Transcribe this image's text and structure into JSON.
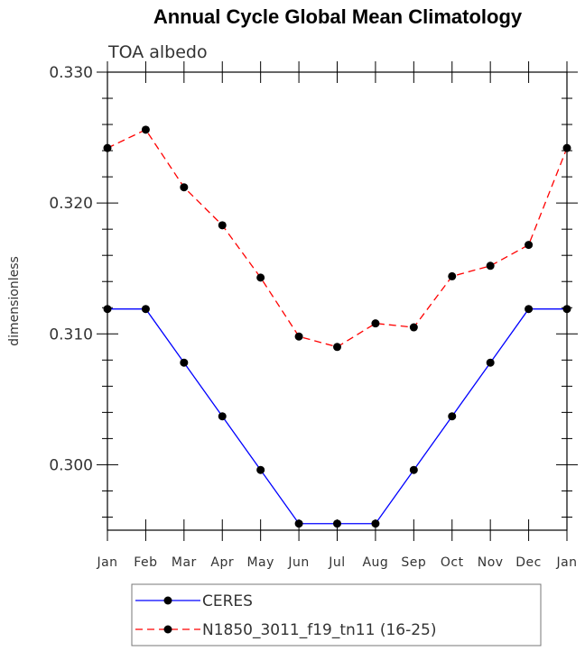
{
  "chart_data": {
    "type": "line",
    "title": "Annual Cycle Global Mean Climatology",
    "subtitle": "TOA albedo",
    "xlabel": "",
    "ylabel": "dimensionless",
    "categories": [
      "Jan",
      "Feb",
      "Mar",
      "Apr",
      "May",
      "Jun",
      "Jul",
      "Aug",
      "Sep",
      "Oct",
      "Nov",
      "Dec",
      "Jan"
    ],
    "ylim": [
      0.295,
      0.33
    ],
    "yticks": [
      "0.300",
      "0.310",
      "0.320",
      "0.330"
    ],
    "legend_position": "bottom",
    "series": [
      {
        "name": "CERES",
        "color": "#0000ff",
        "dash": "solid",
        "values": [
          0.3119,
          0.3119,
          0.3078,
          0.3037,
          0.2996,
          0.2955,
          0.2955,
          0.2955,
          0.2996,
          0.3037,
          0.3078,
          0.3119,
          0.3119
        ]
      },
      {
        "name": "N1850_3011_f19_tn11 (16-25)",
        "color": "#ff0000",
        "dash": "dashed",
        "values": [
          0.3242,
          0.3256,
          0.3212,
          0.3183,
          0.3143,
          0.3098,
          0.309,
          0.3108,
          0.3105,
          0.3144,
          0.3152,
          0.3168,
          0.3242
        ]
      }
    ]
  }
}
